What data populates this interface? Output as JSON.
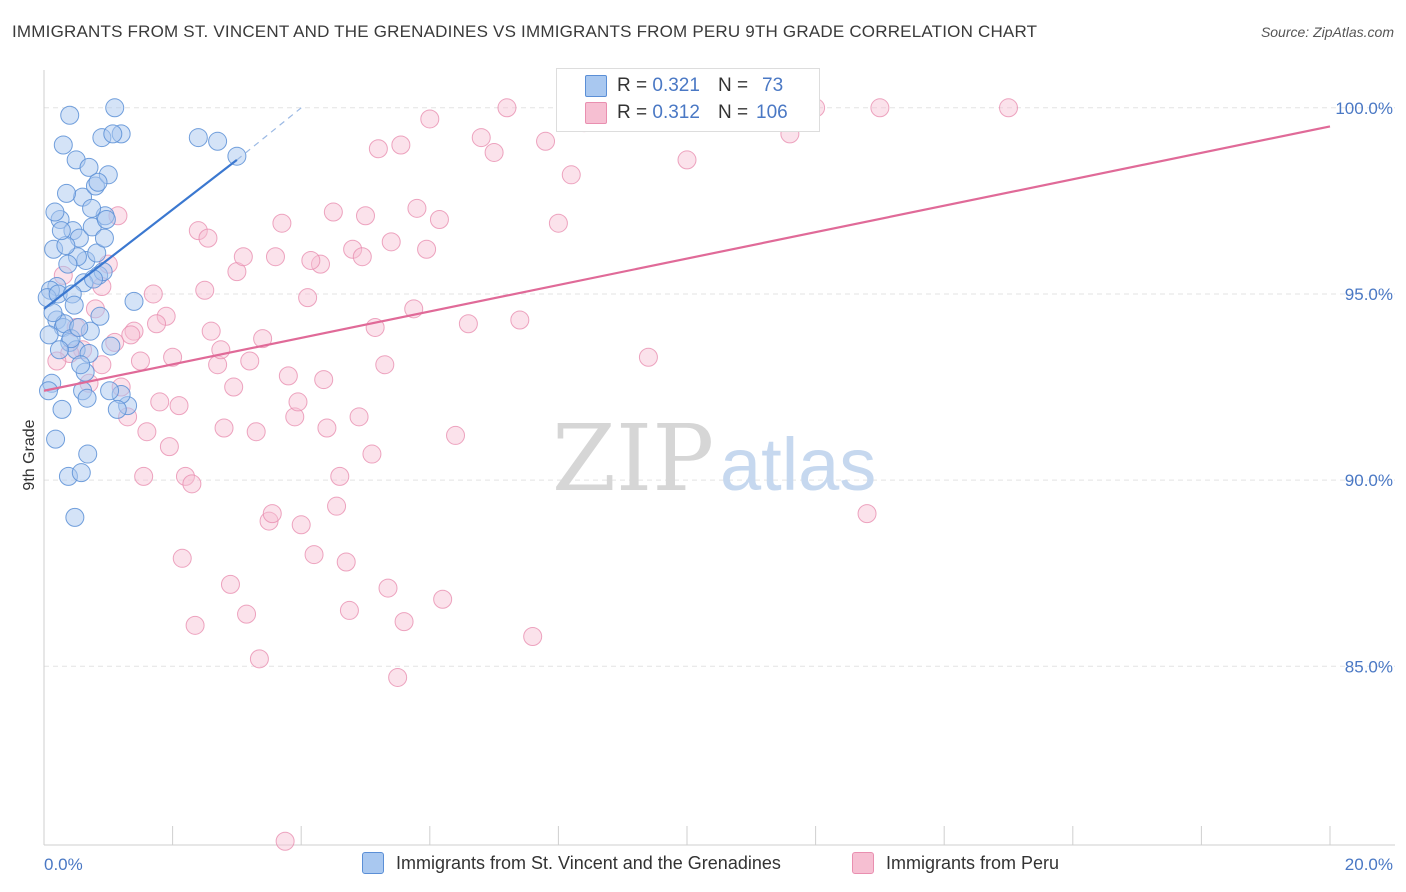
{
  "title": "IMMIGRANTS FROM ST. VINCENT AND THE GRENADINES VS IMMIGRANTS FROM PERU 9TH GRADE CORRELATION CHART",
  "source": "Source: ZipAtlas.com",
  "watermark": {
    "zip": "ZIP",
    "atlas": "atlas"
  },
  "colors": {
    "blue_fill": "#a9c8f0",
    "blue_stroke": "#5b8fd6",
    "blue_line": "#3b78d0",
    "pink_fill": "#f6bfd2",
    "pink_stroke": "#e98fb0",
    "pink_line": "#e06a98",
    "tick_text": "#4a78c4",
    "grid": "#e3e3e3"
  },
  "legend_top": {
    "rows": [
      {
        "r_label": "R = ",
        "r_value": "0.321",
        "n_label": "N = ",
        "n_value": "73"
      },
      {
        "r_label": "R = ",
        "r_value": "0.312",
        "n_label": "N = ",
        "n_value": "106"
      }
    ]
  },
  "chart_data": {
    "type": "scatter",
    "title": "IMMIGRANTS FROM ST. VINCENT AND THE GRENADINES VS IMMIGRANTS FROM PERU 9TH GRADE CORRELATION CHART",
    "xlabel": "",
    "ylabel": "9th Grade",
    "xlim": [
      0,
      20
    ],
    "ylim": [
      80.2,
      100.8
    ],
    "x_tick_labels": [
      "0.0%",
      "20.0%"
    ],
    "y_ticks": [
      85,
      90,
      95,
      100
    ],
    "y_tick_labels": [
      "85.0%",
      "90.0%",
      "95.0%",
      "100.0%"
    ],
    "grid": true,
    "legend_position": "bottom",
    "series": [
      {
        "name": "Immigrants from St. Vincent and the Grenadines",
        "color": "#a9c8f0",
        "r": 0.321,
        "n": 73,
        "trend": {
          "x0": 0.0,
          "y0": 94.6,
          "x1": 3.0,
          "y1": 98.6,
          "dash_x1": 4.0,
          "dash_y1": 100.0
        },
        "points": [
          [
            0.2,
            95.2
          ],
          [
            0.3,
            99.0
          ],
          [
            0.4,
            99.8
          ],
          [
            0.5,
            98.6
          ],
          [
            0.6,
            97.6
          ],
          [
            0.7,
            98.4
          ],
          [
            0.8,
            97.9
          ],
          [
            0.9,
            99.2
          ],
          [
            1.0,
            98.2
          ],
          [
            1.1,
            100.0
          ],
          [
            1.2,
            99.3
          ],
          [
            0.25,
            97.0
          ],
          [
            0.35,
            97.7
          ],
          [
            0.45,
            96.7
          ],
          [
            0.55,
            96.5
          ],
          [
            0.65,
            95.9
          ],
          [
            0.75,
            96.8
          ],
          [
            0.85,
            95.5
          ],
          [
            0.95,
            97.1
          ],
          [
            0.15,
            96.2
          ],
          [
            0.1,
            95.1
          ],
          [
            0.2,
            94.3
          ],
          [
            0.3,
            94.1
          ],
          [
            0.4,
            93.7
          ],
          [
            0.5,
            93.5
          ],
          [
            0.6,
            92.4
          ],
          [
            0.7,
            93.4
          ],
          [
            1.3,
            92.0
          ],
          [
            1.4,
            94.8
          ],
          [
            0.05,
            94.9
          ],
          [
            0.08,
            93.9
          ],
          [
            0.12,
            92.6
          ],
          [
            0.18,
            91.1
          ],
          [
            0.28,
            91.9
          ],
          [
            0.38,
            90.1
          ],
          [
            0.48,
            89.0
          ],
          [
            0.58,
            90.2
          ],
          [
            0.68,
            90.7
          ],
          [
            1.2,
            92.3
          ],
          [
            2.4,
            99.2
          ],
          [
            2.7,
            99.1
          ],
          [
            3.0,
            98.7
          ],
          [
            0.22,
            95.0
          ],
          [
            0.32,
            94.2
          ],
          [
            0.42,
            93.8
          ],
          [
            0.52,
            96.0
          ],
          [
            0.62,
            95.3
          ],
          [
            0.72,
            94.0
          ],
          [
            0.82,
            96.1
          ],
          [
            0.92,
            95.6
          ],
          [
            1.02,
            92.4
          ],
          [
            0.14,
            94.5
          ],
          [
            0.24,
            93.5
          ],
          [
            0.34,
            96.3
          ],
          [
            0.44,
            95.0
          ],
          [
            0.54,
            94.1
          ],
          [
            0.64,
            92.9
          ],
          [
            0.74,
            97.3
          ],
          [
            0.84,
            98.0
          ],
          [
            0.94,
            96.5
          ],
          [
            1.04,
            93.6
          ],
          [
            1.14,
            91.9
          ],
          [
            0.17,
            97.2
          ],
          [
            0.27,
            96.7
          ],
          [
            0.37,
            95.8
          ],
          [
            0.47,
            94.7
          ],
          [
            0.57,
            93.1
          ],
          [
            0.67,
            92.2
          ],
          [
            0.77,
            95.4
          ],
          [
            0.87,
            94.4
          ],
          [
            0.97,
            97.0
          ],
          [
            1.07,
            99.3
          ],
          [
            0.07,
            92.4
          ]
        ]
      },
      {
        "name": "Immigrants from Peru",
        "color": "#f6bfd2",
        "r": 0.312,
        "n": 106,
        "trend": {
          "x0": 0.0,
          "y0": 92.4,
          "x1": 20.0,
          "y1": 99.5
        },
        "points": [
          [
            0.3,
            95.5
          ],
          [
            0.5,
            94.1
          ],
          [
            0.6,
            93.5
          ],
          [
            0.7,
            92.6
          ],
          [
            0.8,
            94.6
          ],
          [
            0.9,
            93.1
          ],
          [
            1.0,
            95.8
          ],
          [
            1.1,
            93.7
          ],
          [
            1.2,
            92.5
          ],
          [
            1.3,
            91.7
          ],
          [
            1.4,
            94.0
          ],
          [
            1.5,
            93.2
          ],
          [
            1.6,
            91.3
          ],
          [
            1.7,
            95.0
          ],
          [
            1.8,
            92.1
          ],
          [
            1.9,
            94.4
          ],
          [
            2.0,
            93.3
          ],
          [
            2.1,
            92.0
          ],
          [
            2.2,
            90.1
          ],
          [
            2.3,
            89.9
          ],
          [
            2.4,
            96.7
          ],
          [
            2.5,
            95.1
          ],
          [
            2.6,
            94.0
          ],
          [
            2.7,
            93.1
          ],
          [
            2.8,
            91.4
          ],
          [
            2.9,
            87.2
          ],
          [
            3.0,
            95.6
          ],
          [
            3.1,
            96.0
          ],
          [
            3.2,
            93.2
          ],
          [
            3.3,
            91.3
          ],
          [
            3.4,
            93.8
          ],
          [
            3.5,
            88.9
          ],
          [
            3.6,
            96.0
          ],
          [
            3.7,
            96.9
          ],
          [
            3.8,
            92.8
          ],
          [
            3.9,
            91.7
          ],
          [
            4.0,
            88.8
          ],
          [
            4.1,
            94.9
          ],
          [
            4.2,
            88.0
          ],
          [
            4.3,
            95.8
          ],
          [
            4.4,
            91.4
          ],
          [
            4.5,
            97.2
          ],
          [
            4.6,
            90.1
          ],
          [
            4.7,
            87.8
          ],
          [
            4.8,
            96.2
          ],
          [
            4.9,
            91.7
          ],
          [
            5.0,
            97.1
          ],
          [
            5.1,
            90.7
          ],
          [
            5.2,
            98.9
          ],
          [
            5.3,
            93.1
          ],
          [
            5.4,
            96.4
          ],
          [
            5.5,
            84.7
          ],
          [
            5.6,
            86.2
          ],
          [
            5.8,
            97.3
          ],
          [
            6.0,
            99.7
          ],
          [
            6.2,
            86.8
          ],
          [
            6.4,
            91.2
          ],
          [
            6.6,
            94.2
          ],
          [
            6.8,
            99.2
          ],
          [
            7.0,
            98.8
          ],
          [
            7.2,
            100.0
          ],
          [
            7.4,
            94.3
          ],
          [
            7.6,
            85.8
          ],
          [
            7.8,
            99.1
          ],
          [
            8.0,
            96.9
          ],
          [
            8.2,
            98.2
          ],
          [
            8.4,
            99.6
          ],
          [
            8.8,
            100.0
          ],
          [
            9.4,
            93.3
          ],
          [
            9.6,
            100.0
          ],
          [
            10.0,
            98.6
          ],
          [
            11.3,
            100.0
          ],
          [
            11.6,
            99.3
          ],
          [
            12.0,
            100.0
          ],
          [
            12.8,
            89.1
          ],
          [
            13.0,
            100.0
          ],
          [
            15.0,
            100.0
          ],
          [
            0.4,
            93.4
          ],
          [
            0.9,
            95.2
          ],
          [
            1.15,
            97.1
          ],
          [
            1.35,
            93.9
          ],
          [
            1.55,
            90.1
          ],
          [
            1.75,
            94.2
          ],
          [
            1.95,
            90.9
          ],
          [
            2.15,
            87.9
          ],
          [
            2.35,
            86.1
          ],
          [
            2.55,
            96.5
          ],
          [
            2.75,
            93.5
          ],
          [
            2.95,
            92.5
          ],
          [
            3.15,
            86.4
          ],
          [
            3.35,
            85.2
          ],
          [
            3.55,
            89.1
          ],
          [
            3.75,
            80.3
          ],
          [
            3.95,
            92.1
          ],
          [
            4.15,
            95.9
          ],
          [
            4.35,
            92.7
          ],
          [
            4.55,
            89.3
          ],
          [
            4.75,
            86.5
          ],
          [
            4.95,
            96.0
          ],
          [
            5.15,
            94.1
          ],
          [
            5.35,
            87.1
          ],
          [
            5.55,
            99.0
          ],
          [
            5.75,
            94.6
          ],
          [
            5.95,
            96.2
          ],
          [
            6.15,
            97.0
          ],
          [
            0.2,
            93.2
          ]
        ]
      }
    ]
  },
  "legend_bottom": [
    "Immigrants from St. Vincent and the Grenadines",
    "Immigrants from Peru"
  ]
}
